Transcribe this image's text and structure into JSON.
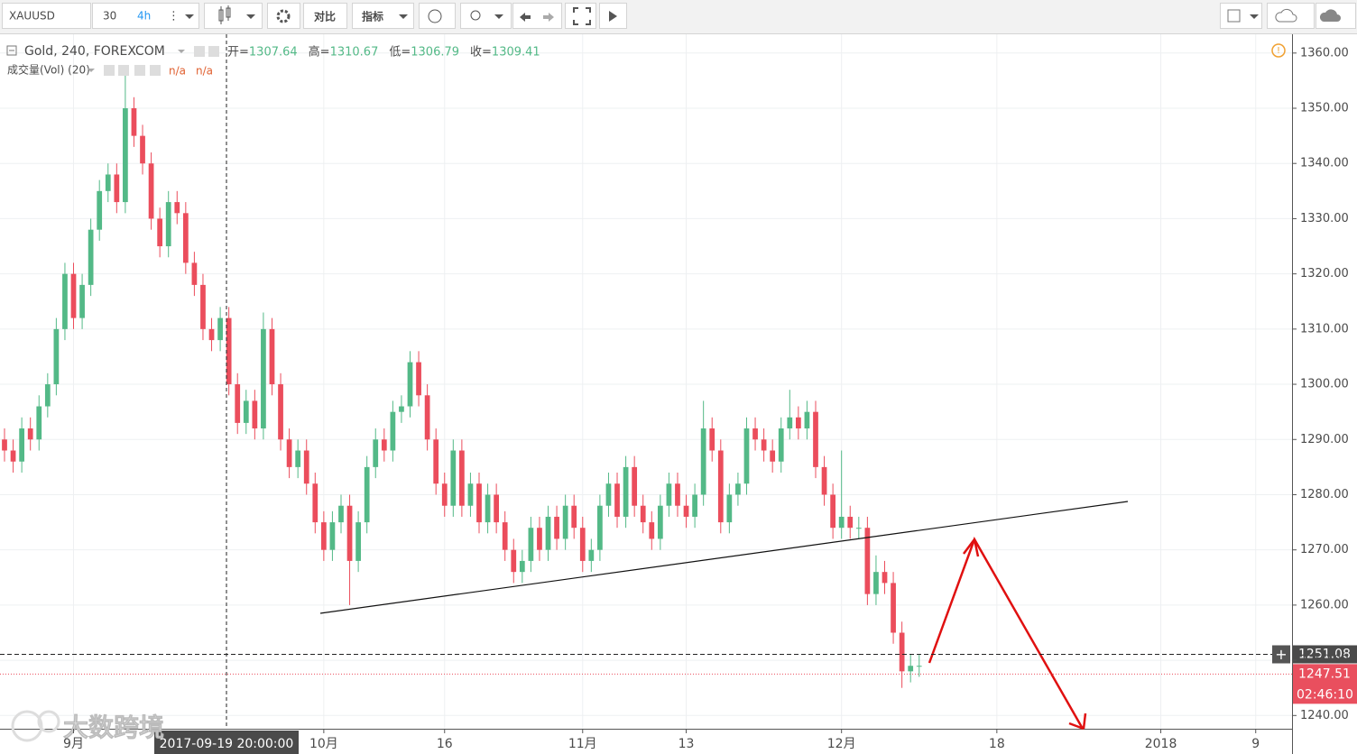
{
  "toolbar": {
    "symbol": "XAUUSD",
    "intervals": [
      "30",
      "4h"
    ],
    "compare": "对比",
    "indicators": "指标"
  },
  "indicator": {
    "name": "成交量(Vol) (20)",
    "values": [
      "n/a",
      "n/a"
    ]
  },
  "watermark": "大数跨境",
  "chart_data": {
    "type": "candlestick",
    "title": "Gold, 240, FOREXCOM",
    "legend": [
      {
        "label": "开=",
        "value": 1307.64
      },
      {
        "label": "高=",
        "value": 1310.67
      },
      {
        "label": "低=",
        "value": 1306.79
      },
      {
        "label": "收=",
        "value": 1309.41
      }
    ],
    "up_color": "#53b987",
    "down_color": "#eb4d5c",
    "x": [
      -7,
      -6,
      -5,
      -4,
      -3,
      -2,
      -1,
      0,
      1,
      2,
      3,
      4,
      5,
      6,
      7,
      8,
      9,
      10,
      11,
      12,
      13,
      14,
      15,
      16,
      17,
      18,
      19,
      20,
      21,
      22,
      23,
      24,
      25,
      26,
      27,
      28,
      29,
      30,
      31,
      32,
      33,
      34,
      35,
      36,
      37,
      38,
      39,
      40,
      41,
      42,
      43,
      44,
      45,
      46,
      47,
      48,
      49,
      50,
      51,
      52,
      53,
      54,
      55,
      56,
      57,
      58,
      59,
      60,
      61,
      62,
      63,
      64,
      65,
      66,
      67,
      68,
      69,
      70,
      71,
      72,
      73,
      74,
      75,
      76,
      77,
      78,
      79,
      80,
      81,
      82,
      83,
      84,
      85,
      86,
      87,
      88,
      89,
      90,
      91,
      92,
      93,
      94,
      95,
      96,
      97,
      98,
      99
    ],
    "open": [
      1290,
      1288,
      1286,
      1292,
      1290,
      1296,
      1300,
      1310,
      1320,
      1312,
      1318,
      1328,
      1335,
      1338,
      1333,
      1350,
      1345,
      1340,
      1330,
      1325,
      1333,
      1331,
      1322,
      1318,
      1310,
      1308,
      1312,
      1300,
      1293,
      1297,
      1292,
      1310,
      1300,
      1290,
      1285,
      1288,
      1282,
      1275,
      1270,
      1275,
      1278,
      1268,
      1275,
      1285,
      1290,
      1288,
      1295,
      1296,
      1304,
      1298,
      1290,
      1282,
      1278,
      1288,
      1278,
      1282,
      1275,
      1280,
      1275,
      1270,
      1266,
      1268,
      1274,
      1270,
      1276,
      1272,
      1278,
      1274,
      1268,
      1270,
      1278,
      1282,
      1276,
      1285,
      1278,
      1275,
      1272,
      1278,
      1282,
      1278,
      1276,
      1280,
      1292,
      1288,
      1275,
      1280,
      1282,
      1292,
      1290,
      1288,
      1286,
      1292,
      1294,
      1292,
      1295,
      1285,
      1280,
      1274,
      1276,
      1274,
      1274,
      1262,
      1266,
      1264,
      1255,
      1248,
      1249
    ],
    "high": [
      1292,
      1290,
      1294,
      1294,
      1298,
      1302,
      1312,
      1322,
      1322,
      1320,
      1330,
      1337,
      1340,
      1340,
      1357,
      1352,
      1347,
      1342,
      1332,
      1335,
      1335,
      1333,
      1324,
      1320,
      1312,
      1314,
      1314,
      1302,
      1299,
      1299,
      1313,
      1312,
      1302,
      1292,
      1290,
      1290,
      1284,
      1277,
      1277,
      1280,
      1280,
      1277,
      1287,
      1292,
      1292,
      1297,
      1298,
      1306,
      1306,
      1300,
      1292,
      1284,
      1290,
      1290,
      1284,
      1284,
      1282,
      1282,
      1277,
      1272,
      1270,
      1276,
      1276,
      1278,
      1278,
      1280,
      1280,
      1276,
      1272,
      1280,
      1284,
      1284,
      1287,
      1287,
      1280,
      1277,
      1280,
      1284,
      1284,
      1280,
      1282,
      1297,
      1294,
      1290,
      1282,
      1284,
      1294,
      1294,
      1292,
      1290,
      1294,
      1299,
      1296,
      1297,
      1297,
      1287,
      1282,
      1288,
      1278,
      1276,
      1276,
      1269,
      1268,
      1266,
      1257,
      1251,
      1251
    ],
    "low": [
      1286,
      1284,
      1284,
      1288,
      1288,
      1294,
      1298,
      1308,
      1310,
      1310,
      1316,
      1326,
      1333,
      1331,
      1331,
      1343,
      1338,
      1328,
      1323,
      1323,
      1329,
      1320,
      1316,
      1308,
      1306,
      1306,
      1298,
      1291,
      1291,
      1290,
      1290,
      1298,
      1288,
      1283,
      1283,
      1280,
      1273,
      1268,
      1268,
      1273,
      1260,
      1266,
      1273,
      1283,
      1286,
      1286,
      1293,
      1294,
      1296,
      1288,
      1280,
      1276,
      1276,
      1276,
      1276,
      1273,
      1273,
      1273,
      1268,
      1264,
      1264,
      1266,
      1268,
      1268,
      1270,
      1270,
      1272,
      1266,
      1266,
      1268,
      1276,
      1274,
      1274,
      1276,
      1273,
      1270,
      1270,
      1276,
      1276,
      1274,
      1274,
      1278,
      1286,
      1273,
      1273,
      1278,
      1280,
      1288,
      1286,
      1284,
      1284,
      1290,
      1290,
      1290,
      1283,
      1278,
      1272,
      1272,
      1272,
      1272,
      1260,
      1260,
      1262,
      1253,
      1245,
      1246,
      1247
    ],
    "close": [
      1288,
      1286,
      1292,
      1290,
      1296,
      1300,
      1310,
      1320,
      1312,
      1318,
      1328,
      1335,
      1338,
      1333,
      1350,
      1345,
      1340,
      1330,
      1325,
      1333,
      1331,
      1322,
      1318,
      1310,
      1308,
      1312,
      1300,
      1293,
      1297,
      1292,
      1310,
      1300,
      1290,
      1285,
      1288,
      1282,
      1275,
      1270,
      1275,
      1278,
      1268,
      1275,
      1285,
      1290,
      1288,
      1295,
      1296,
      1304,
      1298,
      1290,
      1282,
      1278,
      1288,
      1278,
      1282,
      1275,
      1280,
      1275,
      1270,
      1266,
      1268,
      1274,
      1270,
      1276,
      1272,
      1278,
      1274,
      1268,
      1270,
      1278,
      1282,
      1276,
      1285,
      1278,
      1275,
      1272,
      1278,
      1282,
      1278,
      1276,
      1280,
      1292,
      1288,
      1275,
      1280,
      1282,
      1292,
      1290,
      1288,
      1286,
      1292,
      1294,
      1292,
      1295,
      1285,
      1280,
      1274,
      1276,
      1274,
      1274,
      1262,
      1266,
      1264,
      1255,
      1248,
      1249,
      1249
    ],
    "xlim": [
      -7,
      142
    ],
    "xticks": [
      {
        "value": 1,
        "label": "9月"
      },
      {
        "value": 30,
        "label": "10月"
      },
      {
        "value": 44,
        "label": "16"
      },
      {
        "value": 60,
        "label": "11月"
      },
      {
        "value": 72,
        "label": "13"
      },
      {
        "value": 90,
        "label": "12月"
      },
      {
        "value": 108,
        "label": "18"
      },
      {
        "value": 127,
        "label": "2018"
      },
      {
        "value": 138,
        "label": "9"
      }
    ],
    "ylim": [
      1237.6,
      1363.4
    ],
    "yticks": [
      {
        "value": 1240,
        "label": "1240.00"
      },
      {
        "value": 1250,
        "label": "1250.00"
      },
      {
        "value": 1260,
        "label": "1260.00"
      },
      {
        "value": 1270,
        "label": "1270.00"
      },
      {
        "value": 1280,
        "label": "1280.00"
      },
      {
        "value": 1290,
        "label": "1290.00"
      },
      {
        "value": 1300,
        "label": "1300.00"
      },
      {
        "value": 1310,
        "label": "1310.00"
      },
      {
        "value": 1320,
        "label": "1320.00"
      },
      {
        "value": 1330,
        "label": "1330.00"
      },
      {
        "value": 1340,
        "label": "1340.00"
      },
      {
        "value": 1350,
        "label": "1350.00"
      },
      {
        "value": 1360,
        "label": "1360.00"
      }
    ],
    "grid": true,
    "crosshair": {
      "price": 1251.08,
      "time_label": "2017-09-19 20:00:00"
    },
    "last_price": 1247.51,
    "countdown": "02:46:10"
  }
}
